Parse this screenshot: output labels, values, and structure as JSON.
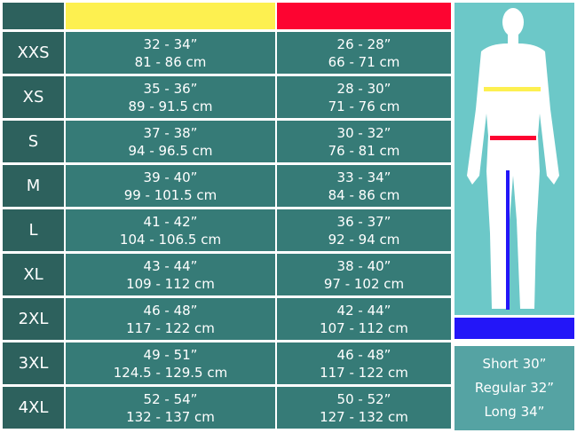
{
  "colors": {
    "chest": "#fdf050",
    "waist": "#fd0431",
    "inseam": "#2316f8"
  },
  "rows": [
    {
      "size": "XXS",
      "chest_in": "32 - 34”",
      "chest_cm": "81 - 86 cm",
      "waist_in": "26 - 28”",
      "waist_cm": "66 - 71 cm"
    },
    {
      "size": "XS",
      "chest_in": "35 - 36”",
      "chest_cm": "89 - 91.5 cm",
      "waist_in": "28 - 30”",
      "waist_cm": "71 - 76 cm"
    },
    {
      "size": "S",
      "chest_in": "37 - 38”",
      "chest_cm": "94 - 96.5 cm",
      "waist_in": "30 - 32”",
      "waist_cm": "76 - 81 cm"
    },
    {
      "size": "M",
      "chest_in": "39 - 40”",
      "chest_cm": "99 - 101.5 cm",
      "waist_in": "33 - 34”",
      "waist_cm": "84 - 86 cm"
    },
    {
      "size": "L",
      "chest_in": "41 - 42”",
      "chest_cm": "104 - 106.5 cm",
      "waist_in": "36 - 37”",
      "waist_cm": "92 - 94 cm"
    },
    {
      "size": "XL",
      "chest_in": "43 - 44”",
      "chest_cm": "109 - 112 cm",
      "waist_in": "38 - 40”",
      "waist_cm": "97 - 102 cm"
    },
    {
      "size": "2XL",
      "chest_in": "46 - 48”",
      "chest_cm": "117 - 122 cm",
      "waist_in": "42 - 44”",
      "waist_cm": "107 - 112 cm"
    },
    {
      "size": "3XL",
      "chest_in": "49 - 51”",
      "chest_cm": "124.5 - 129.5 cm",
      "waist_in": "46 - 48”",
      "waist_cm": "117 - 122 cm"
    },
    {
      "size": "4XL",
      "chest_in": "52 - 54”",
      "chest_cm": "132 - 137 cm",
      "waist_in": "50 - 52”",
      "waist_cm": "127 - 132 cm"
    }
  ],
  "inseam": [
    "Short 30”",
    "Regular 32”",
    "Long 34”"
  ]
}
